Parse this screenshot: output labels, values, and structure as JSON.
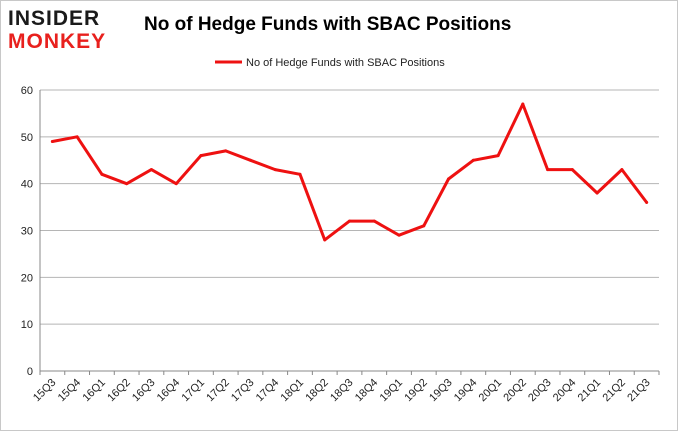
{
  "logo": {
    "line1": "INSIDER",
    "line2": "MONKEY"
  },
  "chart_data": {
    "type": "line",
    "title": "No of Hedge Funds with SBAC Positions",
    "xlabel": "",
    "ylabel": "",
    "categories": [
      "15Q3",
      "15Q4",
      "16Q1",
      "16Q2",
      "16Q3",
      "16Q4",
      "17Q1",
      "17Q2",
      "17Q3",
      "17Q4",
      "18Q1",
      "18Q2",
      "18Q3",
      "18Q4",
      "19Q1",
      "19Q2",
      "19Q3",
      "19Q4",
      "20Q1",
      "20Q2",
      "20Q3",
      "20Q4",
      "21Q1",
      "21Q2",
      "21Q3"
    ],
    "series": [
      {
        "name": "No of Hedge Funds with SBAC Positions",
        "color": "#ee1111",
        "values": [
          49,
          50,
          42,
          40,
          43,
          40,
          46,
          47,
          45,
          43,
          42,
          28,
          32,
          32,
          29,
          31,
          41,
          45,
          46,
          57,
          43,
          43,
          38,
          43,
          36
        ]
      }
    ],
    "ylim": [
      0,
      60
    ],
    "yticks": [
      0,
      10,
      20,
      30,
      40,
      50,
      60
    ],
    "grid": true,
    "legend": "top-center"
  }
}
